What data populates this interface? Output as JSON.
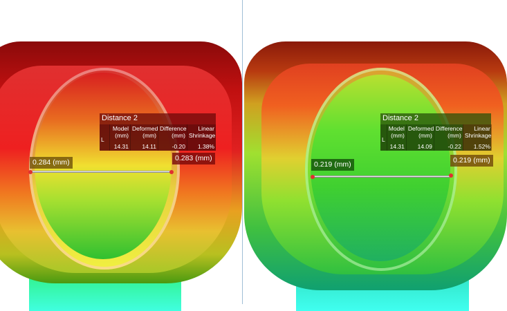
{
  "left": {
    "table": {
      "title": "Distance 2",
      "headers": [
        [
          "",
          ""
        ],
        [
          "Model",
          "(mm)"
        ],
        [
          "Deformed",
          "(mm)"
        ],
        [
          "Difference",
          "(mm)"
        ],
        [
          "Linear",
          "Shrinkage"
        ]
      ],
      "row": [
        "L",
        "14.31",
        "14.11",
        "-0.20",
        "1.38%"
      ]
    },
    "label_left": "0.284 (mm)",
    "label_right": "0.283 (mm)"
  },
  "right": {
    "table": {
      "title": "Distance 2",
      "headers": [
        [
          "",
          ""
        ],
        [
          "Model",
          "(mm)"
        ],
        [
          "Deformed",
          "(mm)"
        ],
        [
          "Difference",
          "(mm)"
        ],
        [
          "Linear",
          "Shrinkage"
        ]
      ],
      "row": [
        "L",
        "14.31",
        "14.09",
        "-0.22",
        "1.52%"
      ]
    },
    "label_left": "0.219 (mm)",
    "label_right": "0.219 (mm)"
  },
  "colors": {
    "hot": "#d01010",
    "warm": "#f0e020",
    "cool": "#20d040",
    "cold": "#30f0e0",
    "divider": "#9fbfd6"
  }
}
